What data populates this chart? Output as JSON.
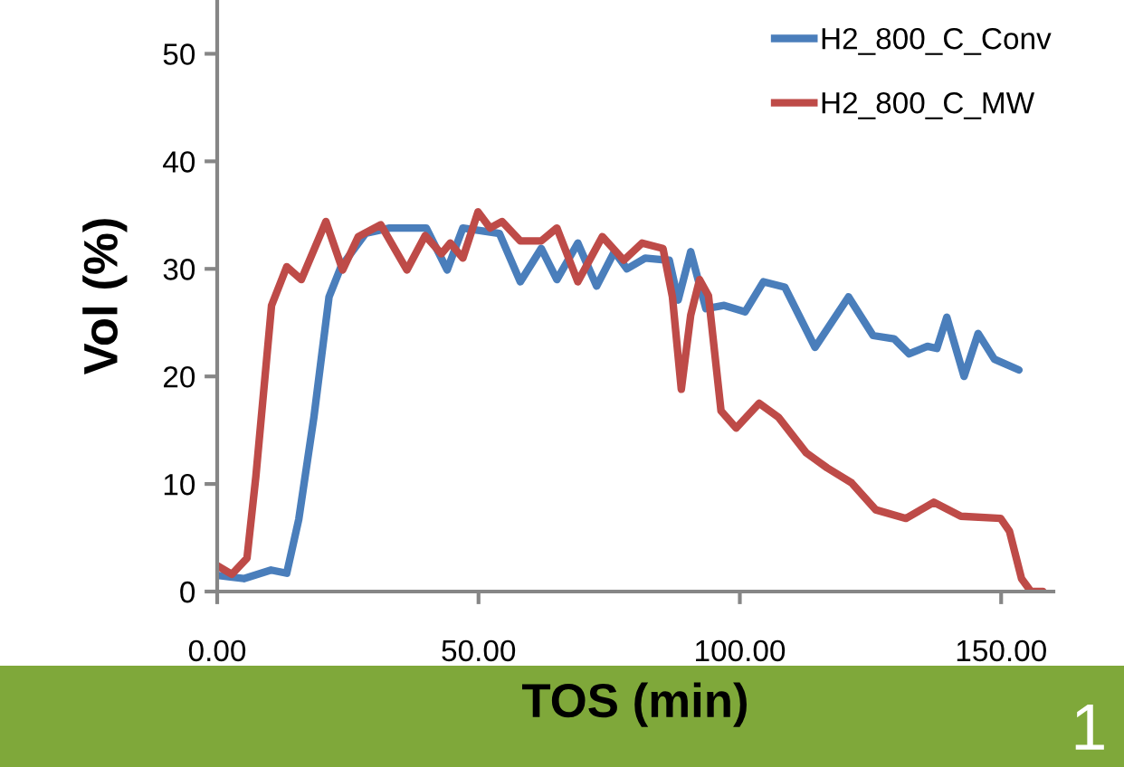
{
  "chart_data": {
    "type": "line",
    "xlabel": "TOS (min)",
    "ylabel": "Vol (%)",
    "xlim": [
      0,
      160
    ],
    "ylim": [
      0,
      55
    ],
    "xticks": [
      {
        "value": 0,
        "label": "0.00"
      },
      {
        "value": 50,
        "label": "50.00"
      },
      {
        "value": 100,
        "label": "100.00"
      },
      {
        "value": 150,
        "label": "150.00"
      }
    ],
    "yticks": [
      0,
      10,
      20,
      30,
      40,
      50
    ],
    "grid": false,
    "legend": "top right",
    "marker": "none",
    "line_style": "solid",
    "annotations": [
      "1"
    ],
    "series": [
      {
        "name": "H2_800_C_Conv",
        "color": "#4a7ebb",
        "x": [
          0,
          5.1,
          10.3,
          13.3,
          15.6,
          18.5,
          21.4,
          23.7,
          28.4,
          33,
          40,
          44,
          47,
          54,
          58,
          62,
          65,
          69,
          72.6,
          76,
          78.4,
          81.9,
          84.2,
          86.5,
          88.2,
          90.6,
          93.5,
          97,
          101,
          104.5,
          108.6,
          114.4,
          120.8,
          125.5,
          129.5,
          132.4,
          135.9,
          137.7,
          139.6,
          142.9,
          145.6,
          148.7,
          153.4
        ],
        "values": [
          1.5,
          1.2,
          2.0,
          1.7,
          6.7,
          16.2,
          27.4,
          30.2,
          33.3,
          33.8,
          33.8,
          29.9,
          33.8,
          33.3,
          28.8,
          31.9,
          29.0,
          32.4,
          28.4,
          31.6,
          30.0,
          31.0,
          30.9,
          30.8,
          27.1,
          31.6,
          26.3,
          26.6,
          26.0,
          28.8,
          28.3,
          22.7,
          27.4,
          23.8,
          23.5,
          22.1,
          22.8,
          22.6,
          25.5,
          20.0,
          24.0,
          21.6,
          20.6
        ]
      },
      {
        "name": "H2_800_C_MW",
        "color": "#be4b48",
        "x": [
          0,
          2.8,
          5.7,
          7.4,
          10.4,
          13.3,
          16.1,
          20.8,
          24,
          27,
          31.3,
          36.3,
          39.8,
          42.9,
          44.6,
          47,
          49.9,
          52.2,
          54.5,
          58,
          62,
          65,
          69,
          73.7,
          77.8,
          81.3,
          85.3,
          87.1,
          88.8,
          90.6,
          92.3,
          94,
          96.4,
          99.3,
          103.7,
          107.4,
          112.7,
          116.7,
          121.4,
          126,
          131.8,
          137.1,
          142.3,
          149.9,
          151.6,
          153.9,
          155.7,
          158
        ],
        "values": [
          2.4,
          1.6,
          3.1,
          10.7,
          26.6,
          30.2,
          29.0,
          34.4,
          29.9,
          33.0,
          34.1,
          29.9,
          33.1,
          31.4,
          32.4,
          31.0,
          35.3,
          33.8,
          34.4,
          32.6,
          32.6,
          33.8,
          28.8,
          33.0,
          30.8,
          32.4,
          31.9,
          27.4,
          18.8,
          25.7,
          29.0,
          27.5,
          16.8,
          15.2,
          17.5,
          16.2,
          12.9,
          11.5,
          10.1,
          7.6,
          6.8,
          8.3,
          7.0,
          6.8,
          5.6,
          1.2,
          0,
          0
        ]
      }
    ]
  }
}
